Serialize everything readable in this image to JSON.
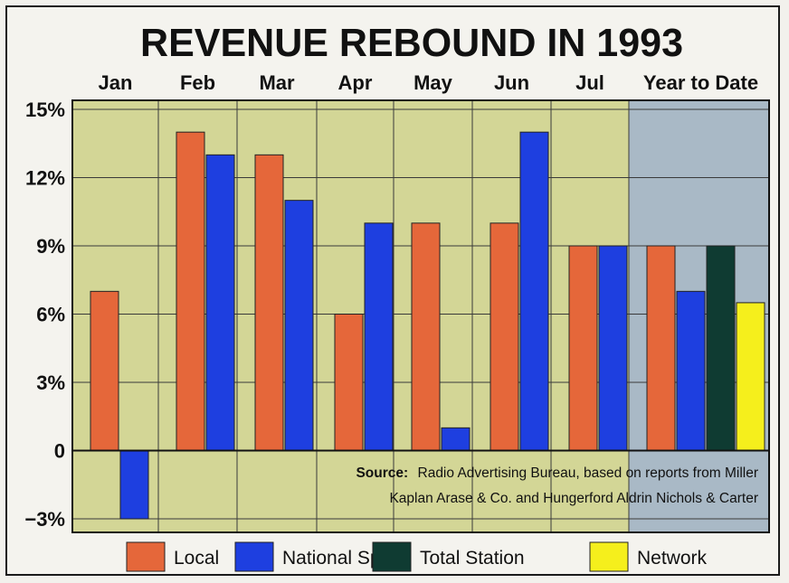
{
  "chart_data": {
    "type": "bar",
    "title": "REVENUE REBOUND IN 1993",
    "categories": [
      "Jan",
      "Feb",
      "Mar",
      "Apr",
      "May",
      "Jun",
      "Jul",
      "Year to Date"
    ],
    "series": [
      {
        "name": "Local",
        "color": "#e5673a",
        "values": [
          7,
          14,
          13,
          6,
          10,
          10,
          9,
          9
        ]
      },
      {
        "name": "National Spot",
        "color": "#1e3fe0",
        "values": [
          -3,
          13,
          11,
          10,
          1,
          14,
          9,
          7
        ]
      },
      {
        "name": "Total Station",
        "color": "#0f3b32",
        "values": [
          null,
          null,
          null,
          null,
          null,
          null,
          null,
          9
        ]
      },
      {
        "name": "Network",
        "color": "#f5ef1c",
        "values": [
          null,
          null,
          null,
          null,
          null,
          null,
          null,
          6.5
        ]
      }
    ],
    "yticks": [
      "15%",
      "12%",
      "9%",
      "6%",
      "3%",
      "0",
      "−3%"
    ],
    "ytick_values": [
      15,
      12,
      9,
      6,
      3,
      0,
      -3
    ],
    "ylim": [
      -3,
      15
    ],
    "grid": true,
    "legend_position": "bottom",
    "source_label": "Source:",
    "source_lines": [
      "Radio Advertising Bureau, based on reports from Miller",
      "Kaplan Arase & Co. and Hungerford Aldrin Nichols & Carter"
    ],
    "colors": {
      "plot_background": "#d3d696",
      "ytd_background": "#a9b9c6",
      "grid": "#3a3a3a"
    }
  }
}
